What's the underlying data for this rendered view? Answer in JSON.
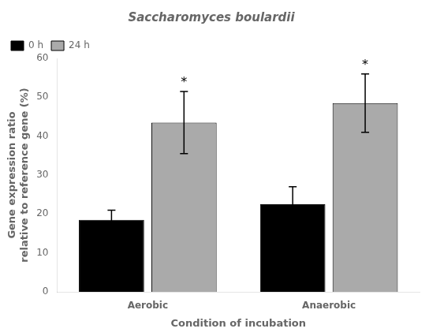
{
  "chart_data": {
    "type": "bar",
    "title": "Saccharomyces boulardii",
    "xlabel": "Condition of incubation",
    "ylabel": "Gene expression ratio\nrelative to reference gene (%)",
    "categories": [
      "Aerobic",
      "Anaerobic"
    ],
    "series": [
      {
        "name": "0 h",
        "color": "#000000",
        "values": [
          18.5,
          22.5
        ],
        "errors": [
          2.5,
          4.5
        ]
      },
      {
        "name": "24 h",
        "color": "#aaaaaa",
        "values": [
          43.5,
          48.5
        ],
        "errors": [
          8.0,
          7.5
        ]
      }
    ],
    "ylim": [
      0,
      60
    ],
    "yticks": [
      0,
      10,
      20,
      30,
      40,
      50,
      60
    ],
    "grid": false,
    "legend": "upper left",
    "annotations": [
      {
        "text": "*",
        "category": "Aerobic",
        "series": "24 h"
      },
      {
        "text": "*",
        "category": "Anaerobic",
        "series": "24 h"
      }
    ]
  }
}
